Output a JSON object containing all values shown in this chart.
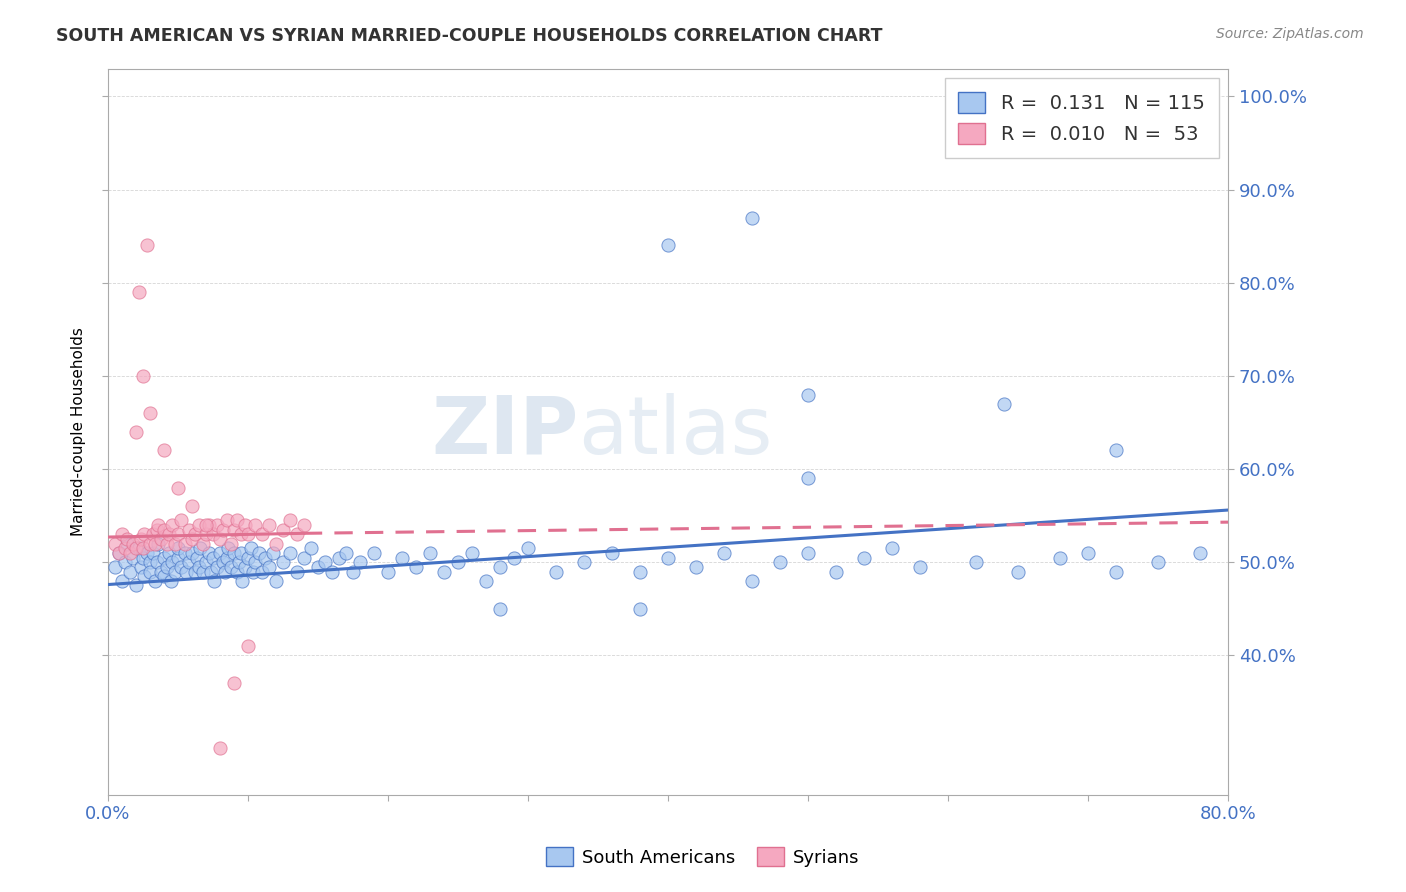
{
  "title": "SOUTH AMERICAN VS SYRIAN MARRIED-COUPLE HOUSEHOLDS CORRELATION CHART",
  "source": "Source: ZipAtlas.com",
  "ylabel": "Married-couple Households",
  "xlim": [
    0.0,
    0.8
  ],
  "ylim": [
    0.25,
    1.03
  ],
  "blue_color": "#a8c8f0",
  "pink_color": "#f5a8c0",
  "blue_line_color": "#4472c4",
  "pink_line_color": "#e07090",
  "blue_R": 0.131,
  "blue_N": 115,
  "pink_R": 0.01,
  "pink_N": 53,
  "watermark_zip": "ZIP",
  "watermark_atlas": "atlas",
  "legend_sa": "South Americans",
  "legend_sy": "Syrians",
  "south_american_x": [
    0.005,
    0.008,
    0.01,
    0.012,
    0.014,
    0.016,
    0.018,
    0.02,
    0.022,
    0.024,
    0.025,
    0.026,
    0.028,
    0.03,
    0.03,
    0.032,
    0.034,
    0.035,
    0.036,
    0.038,
    0.04,
    0.04,
    0.042,
    0.044,
    0.045,
    0.046,
    0.048,
    0.05,
    0.05,
    0.052,
    0.055,
    0.056,
    0.058,
    0.06,
    0.062,
    0.064,
    0.065,
    0.066,
    0.068,
    0.07,
    0.072,
    0.074,
    0.075,
    0.076,
    0.078,
    0.08,
    0.082,
    0.084,
    0.085,
    0.086,
    0.088,
    0.09,
    0.092,
    0.094,
    0.095,
    0.096,
    0.098,
    0.1,
    0.102,
    0.104,
    0.105,
    0.108,
    0.11,
    0.112,
    0.115,
    0.118,
    0.12,
    0.125,
    0.13,
    0.135,
    0.14,
    0.145,
    0.15,
    0.155,
    0.16,
    0.165,
    0.17,
    0.175,
    0.18,
    0.19,
    0.2,
    0.21,
    0.22,
    0.23,
    0.24,
    0.25,
    0.26,
    0.27,
    0.28,
    0.29,
    0.3,
    0.32,
    0.34,
    0.36,
    0.38,
    0.4,
    0.42,
    0.44,
    0.46,
    0.48,
    0.5,
    0.52,
    0.54,
    0.56,
    0.58,
    0.62,
    0.65,
    0.68,
    0.7,
    0.72,
    0.75,
    0.78,
    0.4,
    0.46
  ],
  "south_american_y": [
    0.495,
    0.51,
    0.48,
    0.5,
    0.52,
    0.49,
    0.505,
    0.475,
    0.515,
    0.495,
    0.505,
    0.485,
    0.51,
    0.5,
    0.49,
    0.51,
    0.48,
    0.5,
    0.52,
    0.49,
    0.505,
    0.485,
    0.495,
    0.51,
    0.48,
    0.5,
    0.49,
    0.505,
    0.515,
    0.495,
    0.51,
    0.49,
    0.5,
    0.51,
    0.49,
    0.505,
    0.495,
    0.515,
    0.49,
    0.5,
    0.51,
    0.49,
    0.505,
    0.48,
    0.495,
    0.51,
    0.5,
    0.49,
    0.505,
    0.515,
    0.495,
    0.51,
    0.49,
    0.5,
    0.51,
    0.48,
    0.495,
    0.505,
    0.515,
    0.49,
    0.5,
    0.51,
    0.49,
    0.505,
    0.495,
    0.51,
    0.48,
    0.5,
    0.51,
    0.49,
    0.505,
    0.515,
    0.495,
    0.5,
    0.49,
    0.505,
    0.51,
    0.49,
    0.5,
    0.51,
    0.49,
    0.505,
    0.495,
    0.51,
    0.49,
    0.5,
    0.51,
    0.48,
    0.495,
    0.505,
    0.515,
    0.49,
    0.5,
    0.51,
    0.49,
    0.505,
    0.495,
    0.51,
    0.48,
    0.5,
    0.51,
    0.49,
    0.505,
    0.515,
    0.495,
    0.5,
    0.49,
    0.505,
    0.51,
    0.49,
    0.5,
    0.51,
    0.84,
    0.87
  ],
  "south_american_extra_x": [
    0.28,
    0.38,
    0.5,
    0.5,
    0.64,
    0.72
  ],
  "south_american_extra_y": [
    0.45,
    0.45,
    0.68,
    0.59,
    0.67,
    0.62
  ],
  "syrian_x": [
    0.005,
    0.008,
    0.01,
    0.012,
    0.014,
    0.016,
    0.018,
    0.02,
    0.022,
    0.024,
    0.025,
    0.026,
    0.028,
    0.03,
    0.032,
    0.034,
    0.035,
    0.036,
    0.038,
    0.04,
    0.042,
    0.044,
    0.046,
    0.048,
    0.05,
    0.052,
    0.055,
    0.058,
    0.06,
    0.062,
    0.065,
    0.068,
    0.07,
    0.072,
    0.075,
    0.078,
    0.08,
    0.082,
    0.085,
    0.088,
    0.09,
    0.092,
    0.095,
    0.098,
    0.1,
    0.105,
    0.11,
    0.115,
    0.12,
    0.125,
    0.13,
    0.135,
    0.14
  ],
  "syrian_y": [
    0.52,
    0.51,
    0.53,
    0.515,
    0.525,
    0.51,
    0.52,
    0.515,
    0.79,
    0.525,
    0.515,
    0.53,
    0.84,
    0.52,
    0.53,
    0.52,
    0.535,
    0.54,
    0.525,
    0.535,
    0.52,
    0.53,
    0.54,
    0.52,
    0.53,
    0.545,
    0.52,
    0.535,
    0.525,
    0.53,
    0.54,
    0.52,
    0.53,
    0.54,
    0.53,
    0.54,
    0.525,
    0.535,
    0.545,
    0.52,
    0.535,
    0.545,
    0.53,
    0.54,
    0.53,
    0.54,
    0.53,
    0.54,
    0.52,
    0.535,
    0.545,
    0.53,
    0.54
  ],
  "syrian_extra_x": [
    0.02,
    0.025,
    0.03,
    0.04,
    0.05,
    0.06,
    0.07,
    0.08,
    0.09,
    0.1
  ],
  "syrian_extra_y": [
    0.64,
    0.7,
    0.66,
    0.62,
    0.58,
    0.56,
    0.54,
    0.3,
    0.37,
    0.41
  ]
}
